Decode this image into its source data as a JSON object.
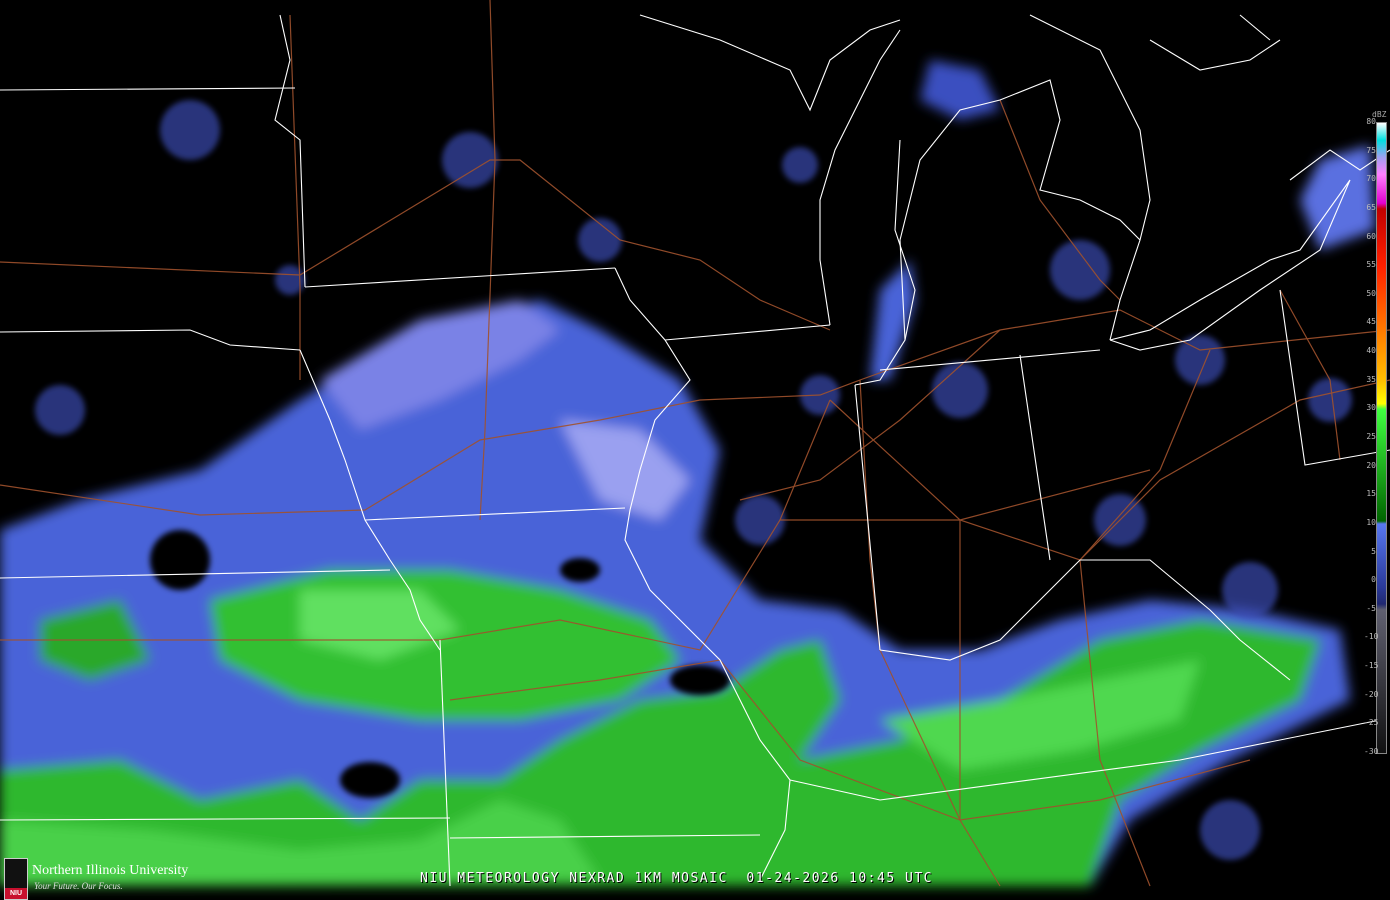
{
  "caption": "NIU METEOROLOGY NEXRAD 1KM MOSAIC  01-24-2026 10:45 UTC",
  "logo": {
    "name": "Northern Illinois University",
    "tagline": "Your Future. Our Focus.",
    "mark": "NIU"
  },
  "legend": {
    "unit": "dBZ",
    "ticks": [
      "80",
      "75",
      "70",
      "65",
      "60",
      "55",
      "50",
      "45",
      "40",
      "35",
      "30",
      "25",
      "20",
      "15",
      "10",
      "5",
      "0",
      "-5",
      "-10",
      "-15",
      "-20",
      "-25",
      "-30"
    ],
    "max": 80,
    "min": -30,
    "stops": [
      {
        "dbz": 80,
        "color": "#ffffff"
      },
      {
        "dbz": 77,
        "color": "#00e0e0"
      },
      {
        "dbz": 74,
        "color": "#a0a0f0"
      },
      {
        "dbz": 71,
        "color": "#ff80ff"
      },
      {
        "dbz": 66,
        "color": "#e000d0"
      },
      {
        "dbz": 65,
        "color": "#c00000"
      },
      {
        "dbz": 55,
        "color": "#ff2000"
      },
      {
        "dbz": 45,
        "color": "#ff7000"
      },
      {
        "dbz": 35,
        "color": "#ffc000"
      },
      {
        "dbz": 31,
        "color": "#ffff00"
      },
      {
        "dbz": 30,
        "color": "#40ff40"
      },
      {
        "dbz": 10.5,
        "color": "#006400"
      },
      {
        "dbz": 10,
        "color": "#5878f0"
      },
      {
        "dbz": -1,
        "color": "#2a3a9a"
      },
      {
        "dbz": -4,
        "color": "#202870"
      },
      {
        "dbz": -5,
        "color": "#606070"
      },
      {
        "dbz": -30,
        "color": "#101010"
      }
    ]
  },
  "colors": {
    "state_lines": "#ffffff",
    "highways": "#a0522d",
    "light_precip": "#4a63d8",
    "moderate_precip": "#2eb82e",
    "clutter": "#6a6a78"
  }
}
